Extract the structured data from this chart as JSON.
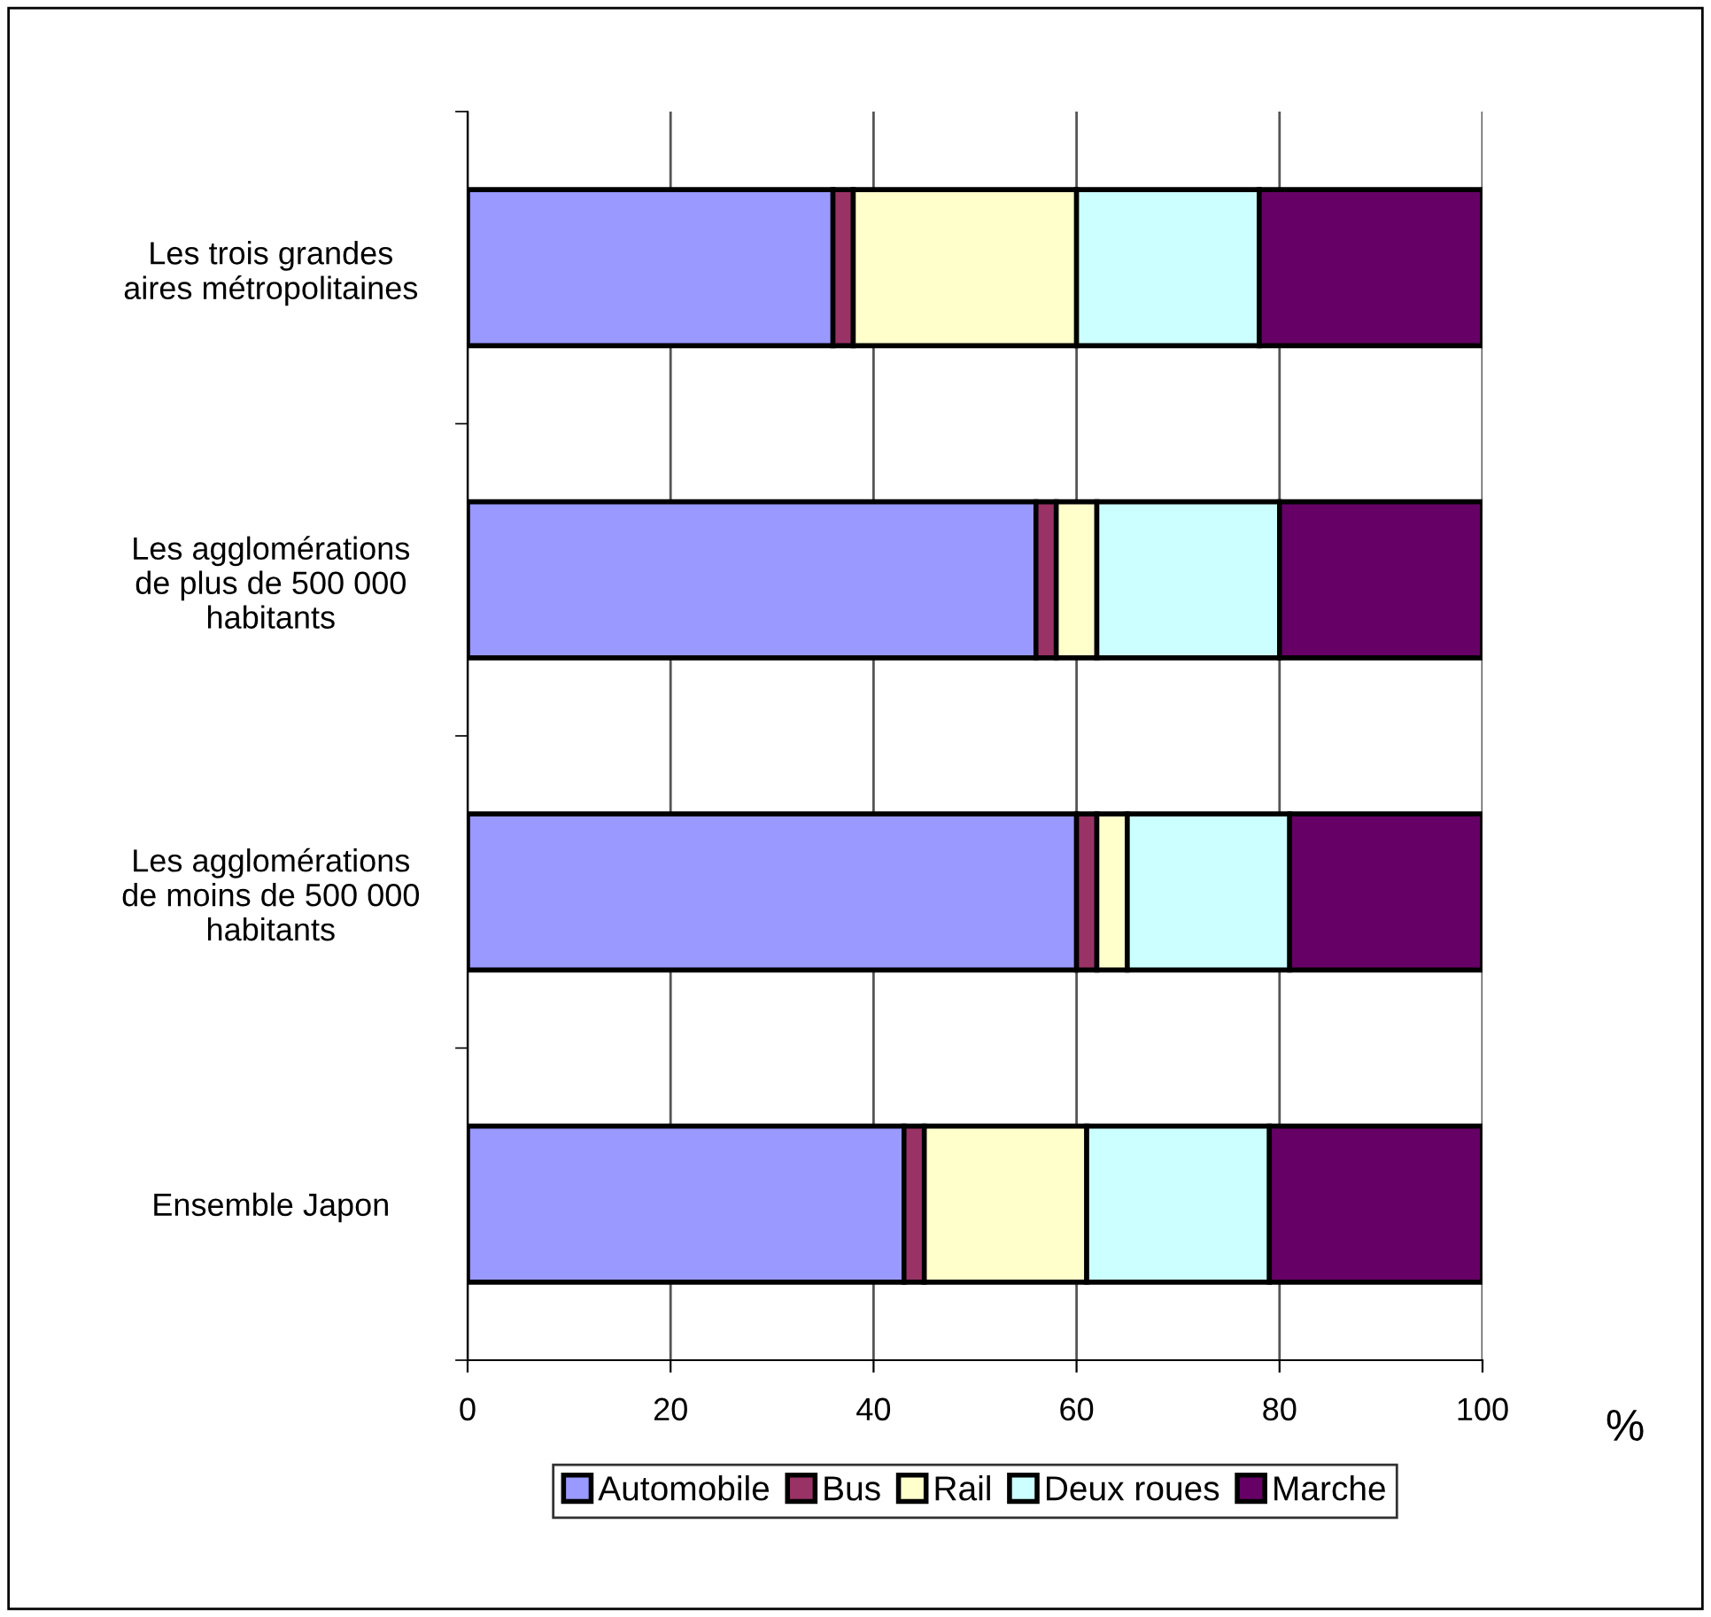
{
  "chart_data": {
    "type": "bar",
    "orientation": "horizontal",
    "stacked": true,
    "categories": [
      "Les trois grandes\naires métropolitaines",
      "Les agglomérations\nde plus de 500 000\nhabitants",
      "Les agglomérations\nde moins de 500 000\nhabitants",
      "Ensemble Japon"
    ],
    "series": [
      {
        "name": "Automobile",
        "color": "#9999ff",
        "values": [
          36,
          56,
          60,
          43
        ]
      },
      {
        "name": "Bus",
        "color": "#993366",
        "values": [
          2,
          2,
          2,
          2
        ]
      },
      {
        "name": "Rail",
        "color": "#ffffcc",
        "values": [
          22,
          4,
          3,
          16
        ]
      },
      {
        "name": "Deux roues",
        "color": "#ccffff",
        "values": [
          18,
          18,
          16,
          18
        ]
      },
      {
        "name": "Marche",
        "color": "#660066",
        "values": [
          22,
          20,
          19,
          21
        ]
      }
    ],
    "xlabel": "%",
    "xlim": [
      0,
      100
    ],
    "xticks": [
      0,
      20,
      40,
      60,
      80,
      100
    ],
    "grid": "x",
    "legend": "bottom"
  }
}
